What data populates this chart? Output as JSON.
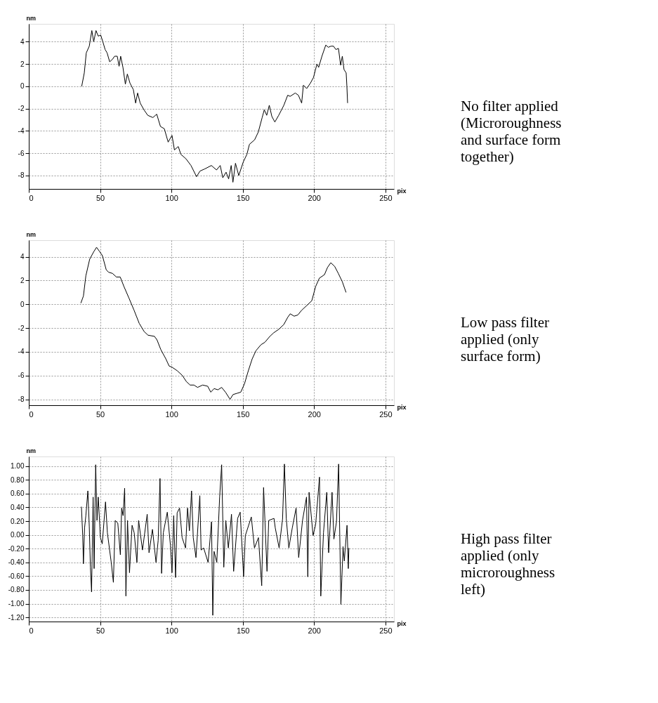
{
  "chart_data": [
    {
      "type": "line",
      "xlabel": "pix",
      "ylabel": "nm",
      "xlim": [
        0,
        256
      ],
      "ylim": [
        -9.2,
        5.6
      ],
      "xticks": [
        0,
        50,
        100,
        150,
        200,
        250
      ],
      "yticks": [
        4,
        2,
        0,
        -2,
        -4,
        -6,
        -8
      ],
      "grid": true,
      "annotations": [
        "No filter applied\n(Microroughness\nand surface form\ntogether)"
      ],
      "series": [
        {
          "color": "#000000",
          "x": [
            37.1,
            38.9,
            40.3,
            42.4,
            44.2,
            45.5,
            47.1,
            48.7,
            50.4,
            51.9,
            53.5,
            54.9,
            56.7,
            58.5,
            60.2,
            62.0,
            63.3,
            64.4,
            66.0,
            67.7,
            69.1,
            70.9,
            73.3,
            74.9,
            76.3,
            78.1,
            80.7,
            83.4,
            87.0,
            89.7,
            92.3,
            95.0,
            97.7,
            100.4,
            102.1,
            104.8,
            106.6,
            110.2,
            113.7,
            117.6,
            120.0,
            123.5,
            128.0,
            131.6,
            134.2,
            136.0,
            138.3,
            140.1,
            141.9,
            143.1,
            144.9,
            147.2,
            150.3,
            152.9,
            154.7,
            158.3,
            160.9,
            163.6,
            165.1,
            166.8,
            168.6,
            170.4,
            172.5,
            175.2,
            178.8,
            181.5,
            183.2,
            186.8,
            189.0,
            191.3,
            192.5,
            194.8,
            197.5,
            199.6,
            202.0,
            203.2,
            205.5,
            208.2,
            210.0,
            211.8,
            213.6,
            215.3,
            217.1,
            218.6,
            219.8,
            221.0,
            222.5,
            223.0,
            223.5
          ],
          "values": [
            0.0,
            1.2,
            3.0,
            3.6,
            5.0,
            4.0,
            5.0,
            4.5,
            4.6,
            4.0,
            3.3,
            3.0,
            2.2,
            2.4,
            2.7,
            2.7,
            1.8,
            2.7,
            1.7,
            0.2,
            1.1,
            0.3,
            -0.3,
            -1.5,
            -0.6,
            -1.5,
            -2.1,
            -2.6,
            -2.8,
            -2.5,
            -3.6,
            -3.8,
            -5.0,
            -4.4,
            -5.7,
            -5.4,
            -6.1,
            -6.5,
            -7.1,
            -8.1,
            -7.6,
            -7.4,
            -7.1,
            -7.5,
            -7.1,
            -8.2,
            -7.7,
            -8.3,
            -7.1,
            -8.6,
            -6.9,
            -8.0,
            -6.8,
            -6.1,
            -5.2,
            -4.8,
            -4.1,
            -2.8,
            -2.1,
            -2.6,
            -1.7,
            -2.7,
            -3.2,
            -2.6,
            -1.7,
            -0.8,
            -0.9,
            -0.6,
            -0.8,
            -1.5,
            0.1,
            -0.2,
            0.3,
            0.8,
            2.0,
            1.7,
            2.7,
            3.7,
            3.5,
            3.6,
            3.6,
            3.3,
            3.4,
            1.9,
            2.7,
            1.5,
            1.2,
            0.0,
            -1.5
          ]
        }
      ]
    },
    {
      "type": "line",
      "xlabel": "pix",
      "ylabel": "nm",
      "xlim": [
        0,
        256
      ],
      "ylim": [
        -8.5,
        5.4
      ],
      "xticks": [
        0,
        50,
        100,
        150,
        200,
        250
      ],
      "yticks": [
        4,
        2,
        0,
        -2,
        -4,
        -6,
        -8
      ],
      "grid": true,
      "annotations": [
        "Low pass filter\napplied (only\nsurface form)"
      ],
      "series": [
        {
          "color": "#000000",
          "x": [
            36.5,
            38.3,
            40.0,
            42.7,
            45.4,
            47.5,
            49.3,
            51.6,
            54.3,
            56.0,
            58.7,
            61.4,
            64.1,
            66.7,
            70.3,
            73.8,
            77.4,
            80.9,
            83.6,
            88.1,
            89.9,
            92.5,
            96.1,
            98.4,
            100.5,
            104.1,
            107.7,
            110.4,
            113.1,
            115.8,
            118.3,
            121.9,
            125.4,
            127.6,
            129.9,
            132.6,
            135.2,
            137.9,
            141.1,
            143.2,
            145.9,
            148.6,
            151.2,
            153.9,
            156.6,
            159.3,
            162.8,
            165.5,
            169.0,
            171.7,
            175.3,
            178.8,
            181.5,
            183.3,
            186.0,
            188.6,
            191.3,
            194.9,
            198.4,
            201.1,
            203.7,
            207.3,
            209.4,
            211.7,
            214.4,
            217.0,
            219.8,
            222.4
          ],
          "values": [
            0.1,
            0.7,
            2.4,
            3.8,
            4.4,
            4.8,
            4.5,
            4.1,
            2.9,
            2.7,
            2.6,
            2.3,
            2.3,
            1.5,
            0.5,
            -0.5,
            -1.6,
            -2.3,
            -2.6,
            -2.7,
            -3.0,
            -3.8,
            -4.6,
            -5.2,
            -5.3,
            -5.6,
            -6.0,
            -6.5,
            -6.8,
            -6.8,
            -7.0,
            -6.8,
            -6.9,
            -7.4,
            -7.1,
            -7.2,
            -7.0,
            -7.4,
            -8.0,
            -7.6,
            -7.5,
            -7.4,
            -6.7,
            -5.6,
            -4.6,
            -3.9,
            -3.4,
            -3.2,
            -2.7,
            -2.4,
            -2.1,
            -1.7,
            -1.1,
            -0.8,
            -1.0,
            -0.9,
            -0.5,
            -0.1,
            0.3,
            1.5,
            2.2,
            2.5,
            3.1,
            3.5,
            3.2,
            2.6,
            1.9,
            1.0
          ]
        }
      ]
    },
    {
      "type": "line",
      "xlabel": "pix",
      "ylabel": "nm",
      "xlim": [
        0,
        256
      ],
      "ylim": [
        -1.26,
        1.14
      ],
      "xticks": [
        0,
        50,
        100,
        150,
        200,
        250
      ],
      "yticks": [
        {
          "value": 1,
          "label": "1.00"
        },
        {
          "value": 0.8,
          "label": "0.80"
        },
        {
          "value": 0.6,
          "label": "0.60"
        },
        {
          "value": 0.4,
          "label": "0.40"
        },
        {
          "value": 0.2,
          "label": "0.20"
        },
        {
          "value": 0,
          "label": "0.00"
        },
        {
          "value": -0.2,
          "label": "-0.20"
        },
        {
          "value": -0.4,
          "label": "-0.40"
        },
        {
          "value": -0.6,
          "label": "-0.60"
        },
        {
          "value": -0.8,
          "label": "-0.80"
        },
        {
          "value": -1,
          "label": "-1.00"
        },
        {
          "value": -1.2,
          "label": "-1.20"
        }
      ],
      "grid": true,
      "annotations": [
        "High pass filter\napplied (only\nmicroroughness\nleft)"
      ],
      "series": [
        {
          "color": "#000000",
          "x": [
            36.9,
            37.8,
            38.3,
            39.1,
            40.0,
            41.4,
            42.4,
            43.2,
            44.0,
            45.1,
            45.8,
            46.9,
            47.8,
            48.7,
            50.2,
            51.5,
            53.8,
            55.1,
            57.8,
            59.3,
            60.6,
            62.4,
            64.2,
            65.1,
            66.1,
            67.2,
            68.1,
            69.2,
            70.6,
            72.4,
            73.9,
            75.8,
            77.0,
            79.7,
            83.0,
            84.3,
            86.7,
            89.2,
            90.7,
            92.0,
            93.1,
            94.3,
            97.1,
            99.3,
            100.4,
            101.6,
            102.9,
            104.0,
            105.7,
            107.5,
            109.9,
            111.3,
            112.6,
            114.1,
            115.3,
            117.2,
            119.9,
            120.8,
            122.6,
            125.7,
            128.1,
            129.0,
            129.9,
            131.8,
            133.8,
            135.2,
            136.7,
            138.1,
            139.9,
            142.1,
            143.6,
            146.4,
            148.2,
            150.6,
            151.8,
            156.0,
            158.2,
            161.0,
            163.3,
            164.6,
            167.0,
            168.2,
            171.9,
            172.8,
            175.5,
            177.9,
            179.2,
            180.5,
            182.3,
            184.7,
            187.4,
            189.2,
            191.9,
            194.7,
            195.6,
            196.5,
            199.3,
            201.1,
            203.8,
            204.7,
            206.6,
            208.9,
            210.2,
            212.6,
            213.9,
            215.7,
            217.2,
            218.8,
            220.3,
            221.2,
            223.1,
            224.0,
            224.4
          ],
          "values": [
            0.41,
            -0.01,
            -0.42,
            0.1,
            0.28,
            0.64,
            0.12,
            -0.47,
            -0.83,
            0.55,
            -0.49,
            1.02,
            0.21,
            0.55,
            -0.04,
            -0.13,
            0.48,
            0.03,
            -0.4,
            -0.69,
            0.21,
            0.17,
            -0.29,
            0.39,
            0.28,
            0.68,
            -0.89,
            0.21,
            -0.55,
            0.14,
            0.03,
            -0.4,
            0.21,
            -0.22,
            0.3,
            -0.26,
            0.08,
            -0.4,
            -0.08,
            0.82,
            -0.56,
            0.03,
            0.33,
            -0.15,
            -0.55,
            0.28,
            -0.62,
            0.32,
            0.39,
            -0.04,
            -0.19,
            0.39,
            0.06,
            0.64,
            -0.04,
            -0.33,
            0.57,
            -0.22,
            -0.19,
            -0.4,
            0.19,
            -1.17,
            -0.24,
            -0.4,
            0.55,
            1.02,
            -0.47,
            0.21,
            -0.19,
            0.3,
            -0.53,
            0.24,
            0.33,
            -0.61,
            -0.01,
            0.26,
            -0.19,
            -0.04,
            -0.74,
            0.69,
            -0.53,
            0.21,
            0.24,
            0.1,
            -0.19,
            0.23,
            1.03,
            0.24,
            -0.19,
            0.1,
            0.39,
            -0.33,
            0.21,
            0.55,
            -0.61,
            0.62,
            -0.01,
            0.15,
            0.84,
            -0.89,
            0.03,
            0.62,
            -0.26,
            0.62,
            -0.06,
            0.19,
            1.03,
            -1.01,
            -0.17,
            -0.38,
            0.14,
            -0.49,
            -0.19
          ]
        }
      ]
    }
  ]
}
